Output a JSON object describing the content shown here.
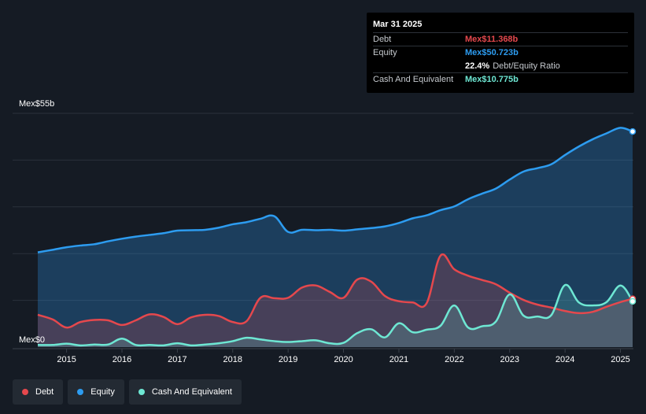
{
  "tooltip": {
    "date": "Mar 31 2025",
    "rows": {
      "debt": {
        "label": "Debt",
        "value": "Mex$11.368b",
        "color": "#e5484d"
      },
      "equity": {
        "label": "Equity",
        "value": "Mex$50.723b",
        "color": "#2d9cf0"
      },
      "ratio": {
        "value": "22.4%",
        "label": "Debt/Equity Ratio"
      },
      "cash": {
        "label": "Cash And Equivalent",
        "value": "Mex$10.775b",
        "color": "#6ee7d3"
      }
    }
  },
  "legend": [
    {
      "label": "Debt",
      "color": "#e5484d"
    },
    {
      "label": "Equity",
      "color": "#2d9cf0"
    },
    {
      "label": "Cash And Equivalent",
      "color": "#6ee7d3"
    }
  ],
  "chart_data": {
    "type": "area",
    "ymax_label": "Mex$55b",
    "ymin_label": "Mex$0",
    "ylim": [
      0,
      55
    ],
    "xlim": [
      2014.48,
      2025.22
    ],
    "x_ticks": [
      2015,
      2016,
      2017,
      2018,
      2019,
      2020,
      2021,
      2022,
      2023,
      2024,
      2025
    ],
    "x_tick_labels": [
      "2015",
      "2016",
      "2017",
      "2018",
      "2019",
      "2020",
      "2021",
      "2022",
      "2023",
      "2024",
      "2025"
    ],
    "grid": true,
    "series": [
      {
        "name": "Equity",
        "color": "#2d9cf0",
        "x": [
          2014.48,
          2014.75,
          2015.0,
          2015.25,
          2015.5,
          2015.75,
          2016.0,
          2016.25,
          2016.5,
          2016.75,
          2017.0,
          2017.25,
          2017.5,
          2017.75,
          2018.0,
          2018.25,
          2018.5,
          2018.75,
          2019.0,
          2019.25,
          2019.5,
          2019.75,
          2020.0,
          2020.25,
          2020.5,
          2020.75,
          2021.0,
          2021.25,
          2021.5,
          2021.75,
          2022.0,
          2022.25,
          2022.5,
          2022.75,
          2023.0,
          2023.25,
          2023.5,
          2023.75,
          2024.0,
          2024.25,
          2024.5,
          2024.75,
          2025.0,
          2025.22
        ],
        "values": [
          22.3,
          22.9,
          23.5,
          23.9,
          24.2,
          24.9,
          25.5,
          26.0,
          26.4,
          26.8,
          27.4,
          27.5,
          27.6,
          28.1,
          28.9,
          29.4,
          30.2,
          30.8,
          27.1,
          27.6,
          27.5,
          27.6,
          27.4,
          27.7,
          28.0,
          28.4,
          29.2,
          30.3,
          31.0,
          32.2,
          33.1,
          34.8,
          36.1,
          37.3,
          39.4,
          41.3,
          42.1,
          43.0,
          45.2,
          47.2,
          48.9,
          50.3,
          51.6,
          50.723
        ]
      },
      {
        "name": "Debt",
        "color": "#e5484d",
        "x": [
          2014.48,
          2014.75,
          2015.0,
          2015.25,
          2015.5,
          2015.75,
          2016.0,
          2016.25,
          2016.5,
          2016.75,
          2017.0,
          2017.25,
          2017.5,
          2017.75,
          2018.0,
          2018.25,
          2018.5,
          2018.75,
          2019.0,
          2019.25,
          2019.5,
          2019.75,
          2020.0,
          2020.25,
          2020.5,
          2020.75,
          2021.0,
          2021.25,
          2021.5,
          2021.75,
          2022.0,
          2022.25,
          2022.5,
          2022.75,
          2023.0,
          2023.25,
          2023.5,
          2023.75,
          2024.0,
          2024.25,
          2024.5,
          2024.75,
          2025.0,
          2025.22
        ],
        "values": [
          7.6,
          6.5,
          4.6,
          5.9,
          6.4,
          6.3,
          5.2,
          6.3,
          7.7,
          7.1,
          5.4,
          7.0,
          7.6,
          7.3,
          5.9,
          6.1,
          11.6,
          11.5,
          11.6,
          14.0,
          14.5,
          13.0,
          11.6,
          15.9,
          15.4,
          12.0,
          10.8,
          10.5,
          10.3,
          21.5,
          18.3,
          16.8,
          15.8,
          14.8,
          12.8,
          11.1,
          10.0,
          9.3,
          8.5,
          8.0,
          8.3,
          9.5,
          10.6,
          11.368
        ]
      },
      {
        "name": "Cash And Equivalent",
        "color": "#6ee7d3",
        "x": [
          2014.48,
          2014.75,
          2015.0,
          2015.25,
          2015.5,
          2015.75,
          2016.0,
          2016.25,
          2016.5,
          2016.75,
          2017.0,
          2017.25,
          2017.5,
          2017.75,
          2018.0,
          2018.25,
          2018.5,
          2018.75,
          2019.0,
          2019.25,
          2019.5,
          2019.75,
          2020.0,
          2020.25,
          2020.5,
          2020.75,
          2021.0,
          2021.25,
          2021.5,
          2021.75,
          2022.0,
          2022.25,
          2022.5,
          2022.75,
          2023.0,
          2023.25,
          2023.5,
          2023.75,
          2024.0,
          2024.25,
          2024.5,
          2024.75,
          2025.0,
          2025.22
        ],
        "values": [
          0.5,
          0.5,
          0.8,
          0.4,
          0.6,
          0.6,
          2.0,
          0.5,
          0.5,
          0.4,
          0.9,
          0.4,
          0.6,
          0.9,
          1.4,
          2.2,
          1.8,
          1.4,
          1.2,
          1.4,
          1.6,
          0.9,
          1.0,
          3.3,
          4.2,
          2.3,
          5.6,
          3.5,
          4.1,
          5.0,
          9.8,
          4.6,
          4.9,
          6.0,
          12.4,
          7.4,
          7.2,
          7.5,
          14.6,
          10.5,
          9.8,
          10.6,
          14.5,
          10.775
        ]
      }
    ]
  }
}
